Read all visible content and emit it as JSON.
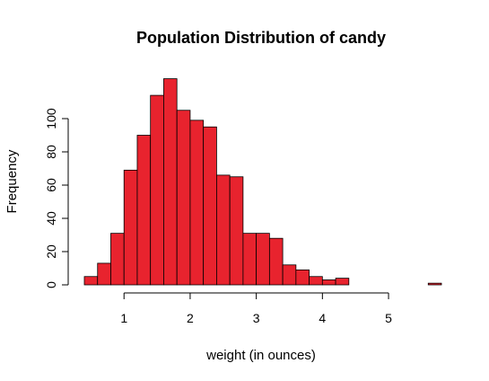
{
  "chart_data": {
    "type": "bar",
    "title": "Population Distribution of candy",
    "xlabel": "weight (in ounces)",
    "ylabel": "Frequency",
    "bin_width": 0.2,
    "bins_start": [
      0.4,
      0.6,
      0.8,
      1.0,
      1.2,
      1.4,
      1.6,
      1.8,
      2.0,
      2.2,
      2.4,
      2.6,
      2.8,
      3.0,
      3.2,
      3.4,
      3.6,
      3.8,
      4.0,
      4.2,
      4.4,
      4.6,
      4.8,
      5.0,
      5.2,
      5.4,
      5.6
    ],
    "values": [
      5,
      13,
      31,
      69,
      90,
      114,
      124,
      105,
      99,
      95,
      66,
      65,
      31,
      31,
      28,
      12,
      9,
      5,
      3,
      4,
      0,
      0,
      0,
      0,
      0,
      0,
      1
    ],
    "xlim": [
      0.4,
      5.8
    ],
    "ylim": [
      0,
      120
    ],
    "x_ticks": [
      "1",
      "2",
      "3",
      "4",
      "5"
    ],
    "y_ticks": [
      "0",
      "20",
      "40",
      "60",
      "80",
      "100"
    ],
    "bar_color": "#E8232E",
    "grid": false
  }
}
